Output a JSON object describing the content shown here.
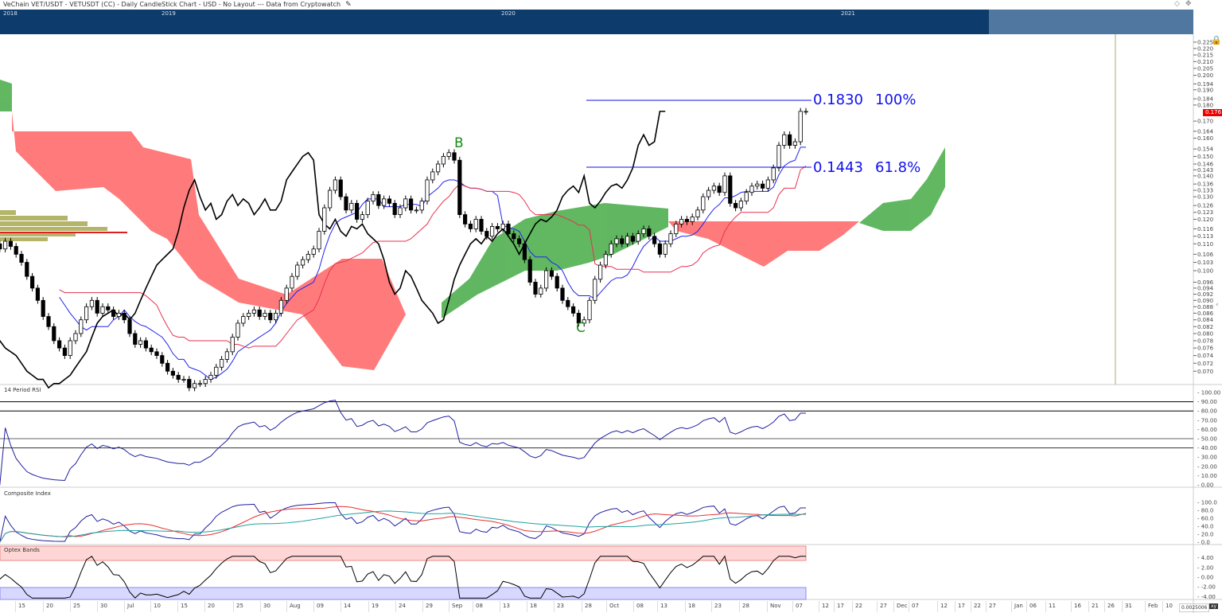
{
  "title": "VeChain VET/USDT - VETUSDT (CC) - Daily CandleStick Chart - USD - No Layout --- Data from Cryptowatch",
  "navigator": {
    "years": [
      "2018",
      "2019",
      "2020",
      "2021"
    ],
    "bg": "#0d3b6b",
    "selection": "#4f77a0"
  },
  "current_price": "0.176",
  "fib": {
    "level1_price": "0.1830",
    "level1_pct": "100%",
    "level2_price": "0.1443",
    "level2_pct": "61.8%"
  },
  "wave_labels": {
    "b": "B",
    "c": "C"
  },
  "panels": {
    "rsi": "14 Period RSI",
    "composite": "Composite Index",
    "optex": "Optex Bands"
  },
  "scale_value": "0.0025006",
  "xy_label": "xy",
  "chart_data": {
    "type": "candlestick",
    "scale": "log",
    "start_date": "2020-06-11",
    "closes": [
      0.11,
      0.108,
      0.111,
      0.109,
      0.106,
      0.103,
      0.098,
      0.094,
      0.09,
      0.085,
      0.082,
      0.078,
      0.076,
      0.074,
      0.078,
      0.08,
      0.084,
      0.088,
      0.09,
      0.086,
      0.088,
      0.087,
      0.085,
      0.086,
      0.084,
      0.08,
      0.077,
      0.078,
      0.076,
      0.075,
      0.074,
      0.072,
      0.07,
      0.069,
      0.068,
      0.068,
      0.066,
      0.067,
      0.067,
      0.068,
      0.069,
      0.071,
      0.073,
      0.075,
      0.079,
      0.083,
      0.085,
      0.086,
      0.087,
      0.085,
      0.086,
      0.084,
      0.086,
      0.09,
      0.094,
      0.098,
      0.102,
      0.104,
      0.106,
      0.108,
      0.115,
      0.125,
      0.133,
      0.138,
      0.13,
      0.124,
      0.127,
      0.12,
      0.122,
      0.128,
      0.131,
      0.126,
      0.129,
      0.127,
      0.122,
      0.125,
      0.129,
      0.124,
      0.124,
      0.128,
      0.138,
      0.142,
      0.146,
      0.15,
      0.152,
      0.148,
      0.122,
      0.118,
      0.116,
      0.12,
      0.115,
      0.113,
      0.117,
      0.116,
      0.118,
      0.114,
      0.112,
      0.11,
      0.104,
      0.096,
      0.092,
      0.094,
      0.1,
      0.098,
      0.094,
      0.09,
      0.088,
      0.086,
      0.083,
      0.084,
      0.09,
      0.097,
      0.102,
      0.106,
      0.11,
      0.112,
      0.11,
      0.113,
      0.111,
      0.114,
      0.116,
      0.113,
      0.11,
      0.106,
      0.11,
      0.114,
      0.118,
      0.12,
      0.119,
      0.121,
      0.124,
      0.13,
      0.133,
      0.135,
      0.132,
      0.14,
      0.127,
      0.125,
      0.128,
      0.132,
      0.135,
      0.136,
      0.134,
      0.138,
      0.144,
      0.156,
      0.162,
      0.156,
      0.158,
      0.176,
      0.176
    ],
    "price_ticks": [
      "0.225",
      "0.220",
      "0.215",
      "0.210",
      "0.205",
      "0.200",
      "0.194",
      "0.190",
      "0.184",
      "0.180",
      "0.170",
      "0.164",
      "0.160",
      "0.154",
      "0.150",
      "0.146",
      "0.143",
      "0.140",
      "0.136",
      "0.133",
      "0.130",
      "0.126",
      "0.123",
      "0.120",
      "0.116",
      "0.113",
      "0.110",
      "0.106",
      "0.103",
      "0.100",
      "0.096",
      "0.094",
      "0.092",
      "0.090",
      "0.088",
      "0.086",
      "0.084",
      "0.082",
      "0.080",
      "0.078",
      "0.076",
      "0.074",
      "0.072",
      "0.070"
    ],
    "date_ticks": [
      "15",
      "20",
      "25",
      "30",
      "Jul",
      "10",
      "15",
      "20",
      "25",
      "30",
      "Aug",
      "09",
      "14",
      "19",
      "24",
      "29",
      "Sep",
      "08",
      "13",
      "18",
      "23",
      "28",
      "Oct",
      "08",
      "13",
      "18",
      "23",
      "28",
      "Nov",
      "07",
      "12",
      "17",
      "22",
      "27",
      "Dec",
      "07",
      "12",
      "17",
      "22",
      "27",
      "Jan",
      "06",
      "11",
      "16",
      "21",
      "26",
      "31",
      "Feb",
      "10"
    ],
    "rsi_ticks": [
      "100.00",
      "90.00",
      "80.00",
      "70.00",
      "60.00",
      "50.00",
      "40.00",
      "30.00",
      "20.00",
      "10.00",
      "0.00"
    ],
    "composite_ticks": [
      "100.0",
      "80.0",
      "60.0",
      "40.0",
      "20.0",
      "0.0"
    ],
    "optex_ticks": [
      "4.00",
      "2.00",
      "0.00",
      "-2.00",
      "-4.00"
    ],
    "colors": {
      "bull_cloud": "#5cb85c",
      "bear_cloud": "#ff6666",
      "tenkan": "#2222ee",
      "kijun": "#e83050",
      "chikou": "#000000",
      "fib": "#1010ee"
    }
  }
}
